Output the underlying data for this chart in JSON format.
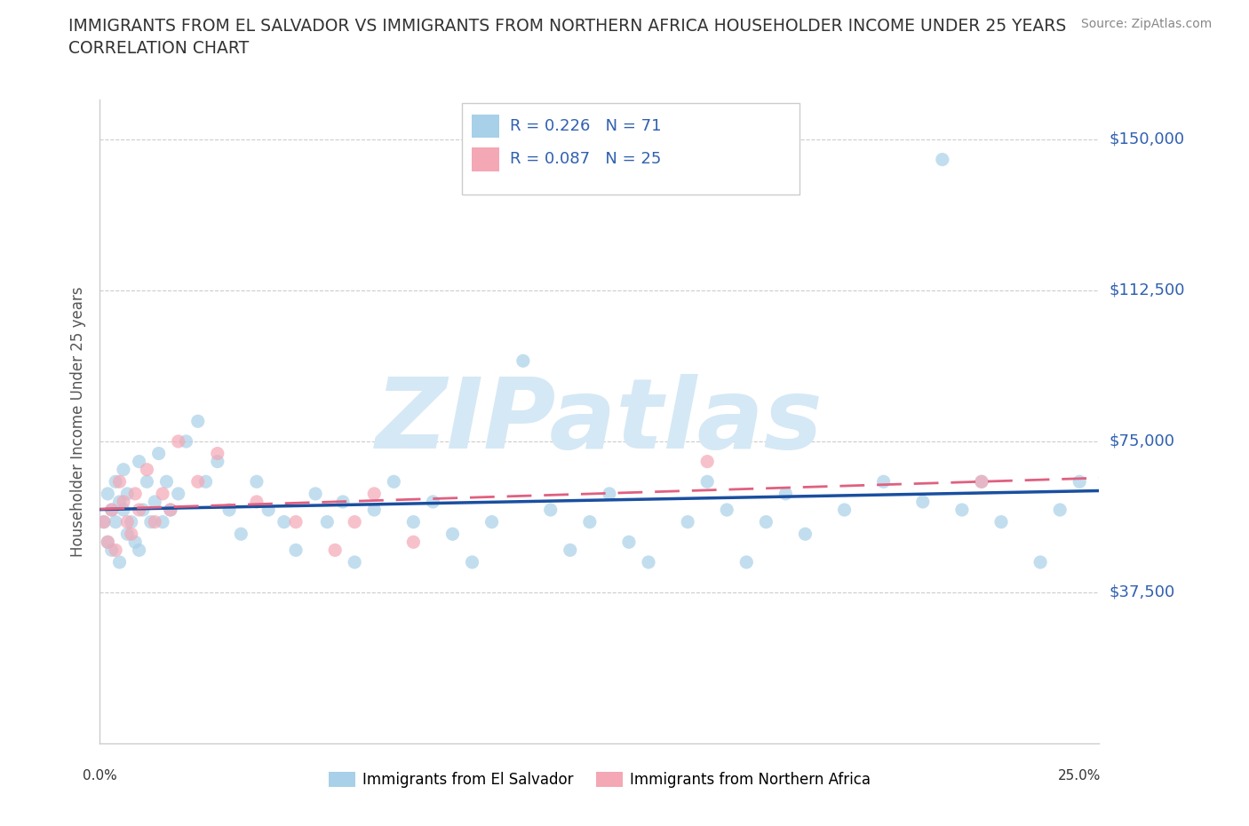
{
  "title_line1": "IMMIGRANTS FROM EL SALVADOR VS IMMIGRANTS FROM NORTHERN AFRICA HOUSEHOLDER INCOME UNDER 25 YEARS",
  "title_line2": "CORRELATION CHART",
  "source_text": "Source: ZipAtlas.com",
  "ylabel": "Householder Income Under 25 years",
  "ytick_labels": [
    "",
    "$37,500",
    "$75,000",
    "$112,500",
    "$150,000"
  ],
  "ytick_values": [
    0,
    37500,
    75000,
    112500,
    150000
  ],
  "ymin": 0,
  "ymax": 160000,
  "xmin": 0.0,
  "xmax": 0.255,
  "r_blue": 0.226,
  "n_blue": 71,
  "r_pink": 0.087,
  "n_pink": 25,
  "color_blue": "#A8D0E8",
  "color_pink": "#F4A7B5",
  "trendline_blue": "#1A4FA0",
  "trendline_pink": "#E06080",
  "watermark": "ZIPatlas",
  "watermark_color": "#D5E8F5",
  "legend_label_blue": "Immigrants from El Salvador",
  "legend_label_pink": "Immigrants from Northern Africa",
  "blue_x": [
    0.001,
    0.002,
    0.002,
    0.003,
    0.003,
    0.004,
    0.004,
    0.005,
    0.005,
    0.006,
    0.006,
    0.007,
    0.007,
    0.008,
    0.009,
    0.01,
    0.01,
    0.011,
    0.012,
    0.013,
    0.014,
    0.015,
    0.016,
    0.017,
    0.018,
    0.02,
    0.022,
    0.025,
    0.027,
    0.03,
    0.033,
    0.036,
    0.04,
    0.043,
    0.047,
    0.05,
    0.055,
    0.058,
    0.062,
    0.065,
    0.07,
    0.075,
    0.08,
    0.085,
    0.09,
    0.095,
    0.1,
    0.108,
    0.115,
    0.12,
    0.125,
    0.13,
    0.135,
    0.14,
    0.15,
    0.155,
    0.16,
    0.165,
    0.17,
    0.175,
    0.18,
    0.19,
    0.2,
    0.21,
    0.215,
    0.22,
    0.225,
    0.23,
    0.24,
    0.245,
    0.25
  ],
  "blue_y": [
    55000,
    50000,
    62000,
    58000,
    48000,
    65000,
    55000,
    60000,
    45000,
    58000,
    68000,
    52000,
    62000,
    55000,
    50000,
    70000,
    48000,
    58000,
    65000,
    55000,
    60000,
    72000,
    55000,
    65000,
    58000,
    62000,
    75000,
    80000,
    65000,
    70000,
    58000,
    52000,
    65000,
    58000,
    55000,
    48000,
    62000,
    55000,
    60000,
    45000,
    58000,
    65000,
    55000,
    60000,
    52000,
    45000,
    55000,
    95000,
    58000,
    48000,
    55000,
    62000,
    50000,
    45000,
    55000,
    65000,
    58000,
    45000,
    55000,
    62000,
    52000,
    58000,
    65000,
    60000,
    145000,
    58000,
    65000,
    55000,
    45000,
    58000,
    65000
  ],
  "pink_x": [
    0.001,
    0.002,
    0.003,
    0.004,
    0.005,
    0.006,
    0.007,
    0.008,
    0.009,
    0.01,
    0.012,
    0.014,
    0.016,
    0.018,
    0.02,
    0.025,
    0.03,
    0.04,
    0.05,
    0.06,
    0.065,
    0.07,
    0.08,
    0.155,
    0.225
  ],
  "pink_y": [
    55000,
    50000,
    58000,
    48000,
    65000,
    60000,
    55000,
    52000,
    62000,
    58000,
    68000,
    55000,
    62000,
    58000,
    75000,
    65000,
    72000,
    60000,
    55000,
    48000,
    55000,
    62000,
    50000,
    70000,
    65000
  ]
}
